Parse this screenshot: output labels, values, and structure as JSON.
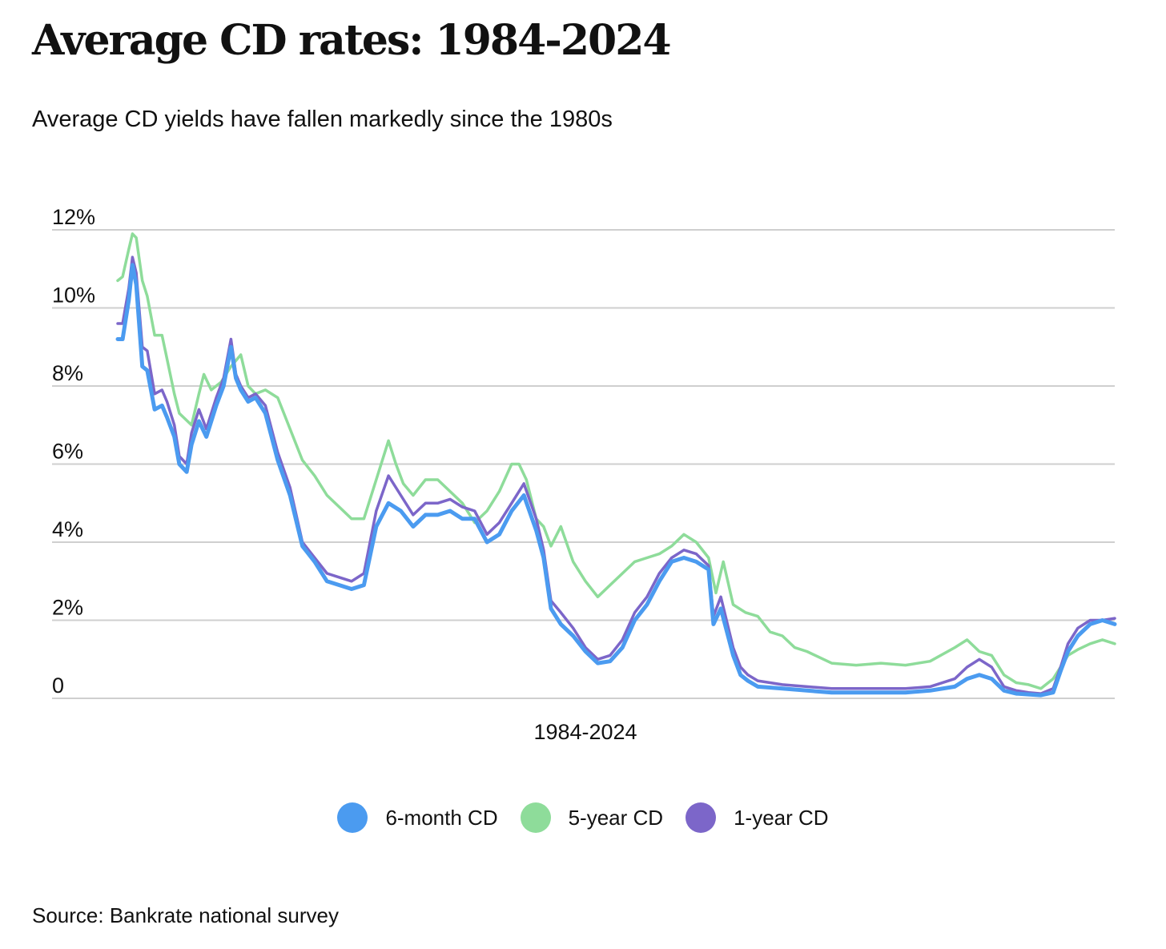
{
  "title": "Average CD rates: 1984-2024",
  "subtitle": "Average CD yields have fallen markedly since the 1980s",
  "source": "Source: Bankrate national survey",
  "chart_data": {
    "type": "line",
    "xlabel": "1984-2024",
    "ylabel": "",
    "xlim": [
      1984,
      2024.5
    ],
    "ylim": [
      0,
      12
    ],
    "y_ticks": [
      {
        "value": 0,
        "label": "0"
      },
      {
        "value": 2,
        "label": "2%"
      },
      {
        "value": 4,
        "label": "4%"
      },
      {
        "value": 6,
        "label": "6%"
      },
      {
        "value": 8,
        "label": "8%"
      },
      {
        "value": 10,
        "label": "10%"
      },
      {
        "value": 12,
        "label": "12%"
      }
    ],
    "grid": "horizontal",
    "legend_position": "bottom-center",
    "series": [
      {
        "name": "5-year CD",
        "color": "#8EDC9A",
        "x": [
          1984.0,
          1984.2,
          1984.45,
          1984.6,
          1984.75,
          1985.0,
          1985.2,
          1985.5,
          1985.8,
          1986.0,
          1986.3,
          1986.5,
          1987.0,
          1987.3,
          1987.5,
          1987.8,
          1988.2,
          1988.6,
          1989.0,
          1989.3,
          1989.6,
          1990.0,
          1990.5,
          1991.0,
          1991.5,
          1992.0,
          1992.5,
          1993.0,
          1993.5,
          1994.0,
          1994.5,
          1995.0,
          1995.3,
          1995.6,
          1996.0,
          1996.5,
          1997.0,
          1997.5,
          1998.0,
          1998.5,
          1999.0,
          1999.5,
          2000.0,
          2000.3,
          2000.6,
          2001.0,
          2001.3,
          2001.6,
          2002.0,
          2002.5,
          2003.0,
          2003.5,
          2004.0,
          2004.5,
          2005.0,
          2005.5,
          2006.0,
          2006.5,
          2007.0,
          2007.5,
          2008.0,
          2008.3,
          2008.6,
          2009.0,
          2009.5,
          2010.0,
          2010.5,
          2011.0,
          2011.5,
          2012.0,
          2013.0,
          2014.0,
          2015.0,
          2016.0,
          2017.0,
          2018.0,
          2018.5,
          2019.0,
          2019.5,
          2020.0,
          2020.5,
          2021.0,
          2021.5,
          2022.0,
          2022.3,
          2022.6,
          2023.0,
          2023.5,
          2024.0,
          2024.5
        ],
        "y": [
          10.7,
          10.8,
          11.5,
          11.9,
          11.8,
          10.7,
          10.3,
          9.3,
          9.3,
          8.7,
          7.8,
          7.3,
          7.0,
          7.8,
          8.3,
          7.9,
          8.1,
          8.5,
          8.8,
          8.0,
          7.8,
          7.9,
          7.7,
          6.9,
          6.1,
          5.7,
          5.2,
          4.9,
          4.6,
          4.6,
          5.6,
          6.6,
          6.0,
          5.5,
          5.2,
          5.6,
          5.6,
          5.3,
          5.0,
          4.5,
          4.8,
          5.3,
          6.0,
          6.0,
          5.6,
          4.6,
          4.4,
          3.9,
          4.4,
          3.5,
          3.0,
          2.6,
          2.9,
          3.2,
          3.5,
          3.6,
          3.7,
          3.9,
          4.2,
          4.0,
          3.6,
          2.7,
          3.5,
          2.4,
          2.2,
          2.1,
          1.7,
          1.6,
          1.3,
          1.2,
          0.9,
          0.85,
          0.9,
          0.85,
          0.95,
          1.3,
          1.5,
          1.2,
          1.1,
          0.6,
          0.4,
          0.35,
          0.25,
          0.5,
          0.8,
          1.1,
          1.25,
          1.4,
          1.5,
          1.4
        ]
      },
      {
        "name": "1-year CD",
        "color": "#7C66C9",
        "x": [
          1984.0,
          1984.2,
          1984.45,
          1984.6,
          1984.75,
          1985.0,
          1985.2,
          1985.5,
          1985.8,
          1986.0,
          1986.3,
          1986.5,
          1986.8,
          1987.0,
          1987.3,
          1987.6,
          1988.0,
          1988.3,
          1988.6,
          1988.8,
          1989.0,
          1989.3,
          1989.6,
          1990.0,
          1990.5,
          1991.0,
          1991.5,
          1992.0,
          1992.5,
          1993.0,
          1993.5,
          1994.0,
          1994.5,
          1995.0,
          1995.5,
          1996.0,
          1996.5,
          1997.0,
          1997.5,
          1998.0,
          1998.5,
          1999.0,
          1999.5,
          2000.0,
          2000.5,
          2001.0,
          2001.3,
          2001.6,
          2002.0,
          2002.5,
          2003.0,
          2003.5,
          2004.0,
          2004.5,
          2005.0,
          2005.5,
          2006.0,
          2006.5,
          2007.0,
          2007.5,
          2008.0,
          2008.2,
          2008.5,
          2009.0,
          2009.3,
          2009.6,
          2010.0,
          2011.0,
          2012.0,
          2013.0,
          2014.0,
          2015.0,
          2016.0,
          2017.0,
          2018.0,
          2018.5,
          2019.0,
          2019.5,
          2020.0,
          2020.5,
          2021.0,
          2021.5,
          2022.0,
          2022.3,
          2022.6,
          2023.0,
          2023.5,
          2024.0,
          2024.5
        ],
        "y": [
          9.6,
          9.6,
          10.5,
          11.3,
          10.9,
          9.0,
          8.9,
          7.8,
          7.9,
          7.6,
          7.0,
          6.2,
          6.0,
          6.8,
          7.4,
          6.9,
          7.7,
          8.2,
          9.2,
          8.3,
          8.0,
          7.7,
          7.8,
          7.5,
          6.3,
          5.4,
          4.0,
          3.6,
          3.2,
          3.1,
          3.0,
          3.2,
          4.8,
          5.7,
          5.2,
          4.7,
          5.0,
          5.0,
          5.1,
          4.9,
          4.8,
          4.2,
          4.5,
          5.0,
          5.5,
          4.6,
          3.8,
          2.5,
          2.2,
          1.8,
          1.3,
          1.0,
          1.1,
          1.5,
          2.2,
          2.6,
          3.2,
          3.6,
          3.8,
          3.7,
          3.4,
          2.1,
          2.6,
          1.3,
          0.8,
          0.6,
          0.45,
          0.35,
          0.3,
          0.25,
          0.25,
          0.25,
          0.25,
          0.3,
          0.5,
          0.8,
          1.0,
          0.8,
          0.3,
          0.2,
          0.15,
          0.12,
          0.25,
          0.8,
          1.4,
          1.8,
          2.0,
          2.0,
          2.05
        ]
      },
      {
        "name": "6-month CD",
        "color": "#4B9BF0",
        "x": [
          1984.0,
          1984.2,
          1984.45,
          1984.6,
          1984.75,
          1985.0,
          1985.2,
          1985.5,
          1985.8,
          1986.0,
          1986.3,
          1986.5,
          1986.8,
          1987.0,
          1987.3,
          1987.6,
          1988.0,
          1988.3,
          1988.6,
          1988.8,
          1989.0,
          1989.3,
          1989.6,
          1990.0,
          1990.5,
          1991.0,
          1991.5,
          1992.0,
          1992.5,
          1993.0,
          1993.5,
          1994.0,
          1994.5,
          1995.0,
          1995.5,
          1996.0,
          1996.5,
          1997.0,
          1997.5,
          1998.0,
          1998.5,
          1999.0,
          1999.5,
          2000.0,
          2000.5,
          2001.0,
          2001.3,
          2001.6,
          2002.0,
          2002.5,
          2003.0,
          2003.5,
          2004.0,
          2004.5,
          2005.0,
          2005.5,
          2006.0,
          2006.5,
          2007.0,
          2007.5,
          2008.0,
          2008.2,
          2008.5,
          2009.0,
          2009.3,
          2009.6,
          2010.0,
          2011.0,
          2012.0,
          2013.0,
          2014.0,
          2015.0,
          2016.0,
          2017.0,
          2018.0,
          2018.5,
          2019.0,
          2019.5,
          2020.0,
          2020.5,
          2021.0,
          2021.5,
          2022.0,
          2022.3,
          2022.6,
          2023.0,
          2023.5,
          2024.0,
          2024.5
        ],
        "y": [
          9.2,
          9.2,
          10.2,
          11.1,
          10.6,
          8.5,
          8.4,
          7.4,
          7.5,
          7.2,
          6.7,
          6.0,
          5.8,
          6.5,
          7.1,
          6.7,
          7.5,
          8.0,
          9.0,
          8.2,
          7.9,
          7.6,
          7.7,
          7.3,
          6.1,
          5.2,
          3.9,
          3.5,
          3.0,
          2.9,
          2.8,
          2.9,
          4.4,
          5.0,
          4.8,
          4.4,
          4.7,
          4.7,
          4.8,
          4.6,
          4.6,
          4.0,
          4.2,
          4.8,
          5.2,
          4.3,
          3.6,
          2.3,
          1.9,
          1.6,
          1.2,
          0.9,
          0.95,
          1.3,
          2.0,
          2.4,
          3.0,
          3.5,
          3.6,
          3.5,
          3.3,
          1.9,
          2.3,
          1.1,
          0.6,
          0.45,
          0.3,
          0.25,
          0.2,
          0.15,
          0.15,
          0.15,
          0.15,
          0.2,
          0.3,
          0.5,
          0.6,
          0.5,
          0.2,
          0.12,
          0.1,
          0.08,
          0.15,
          0.7,
          1.2,
          1.6,
          1.9,
          2.0,
          1.9
        ]
      }
    ]
  },
  "legend": [
    {
      "label": "6-month CD",
      "color": "#4B9BF0"
    },
    {
      "label": "5-year CD",
      "color": "#8EDC9A"
    },
    {
      "label": "1-year CD",
      "color": "#7C66C9"
    }
  ]
}
